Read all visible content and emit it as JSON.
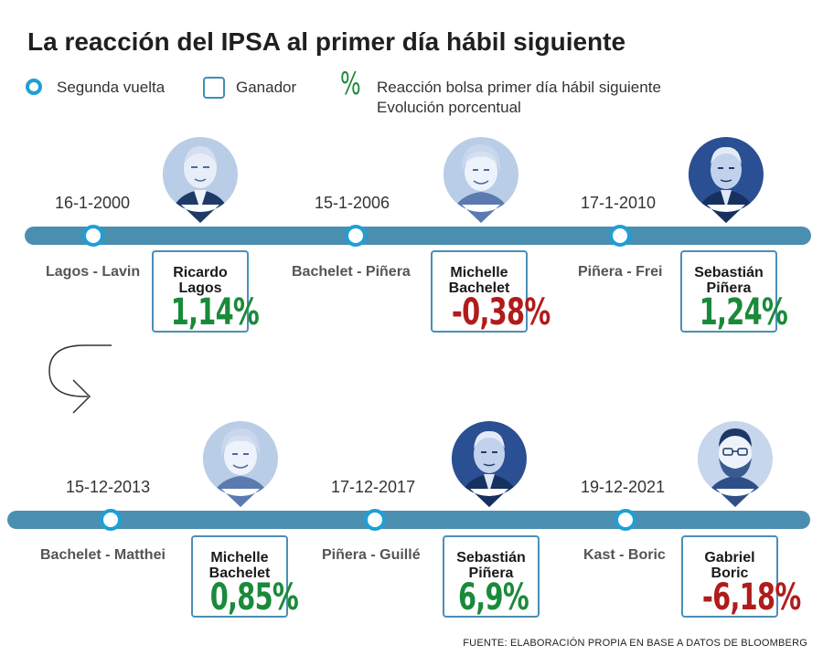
{
  "title": "La reacción del IPSA al primer día hábil siguiente",
  "legend": {
    "runoff": "Segunda vuelta",
    "winner": "Ganador",
    "pct_symbol": "%",
    "reaction_line1": "Reacción bolsa primer día hábil siguiente",
    "reaction_line2": "Evolución porcentual"
  },
  "colors": {
    "positive": "#1a8a3a",
    "negative": "#b01c1c",
    "timeline": "#4a8fb0",
    "node": "#1f9fd6"
  },
  "elections": [
    {
      "date": "16-1-2000",
      "candidates": "Lagos - Lavin",
      "winner_line1": "Ricardo",
      "winner_line2": "Lagos",
      "reaction": "1,14%",
      "sign": "positive",
      "photo": "portrait-lagos"
    },
    {
      "date": "15-1-2006",
      "candidates": "Bachelet - Piñera",
      "winner_line1": "Michelle",
      "winner_line2": "Bachelet",
      "reaction": "-0,38%",
      "sign": "negative",
      "photo": "portrait-bachelet"
    },
    {
      "date": "17-1-2010",
      "candidates": "Piñera - Frei",
      "winner_line1": "Sebastián",
      "winner_line2": "Piñera",
      "reaction": "1,24%",
      "sign": "positive",
      "photo": "portrait-pinera"
    },
    {
      "date": "15-12-2013",
      "candidates": "Bachelet - Matthei",
      "winner_line1": "Michelle",
      "winner_line2": "Bachelet",
      "reaction": "0,85%",
      "sign": "positive",
      "photo": "portrait-bachelet"
    },
    {
      "date": "17-12-2017",
      "candidates": "Piñera - Guillé",
      "winner_line1": "Sebastián",
      "winner_line2": "Piñera",
      "reaction": "6,9%",
      "sign": "positive",
      "photo": "portrait-pinera"
    },
    {
      "date": "19-12-2021",
      "candidates": "Kast - Boric",
      "winner_line1": "Gabriel",
      "winner_line2": "Boric",
      "reaction": "-6,18%",
      "sign": "negative",
      "photo": "portrait-boric"
    }
  ],
  "source": "FUENTE: ELABORACIÓN PROPIA EN BASE A DATOS DE BLOOMBERG"
}
